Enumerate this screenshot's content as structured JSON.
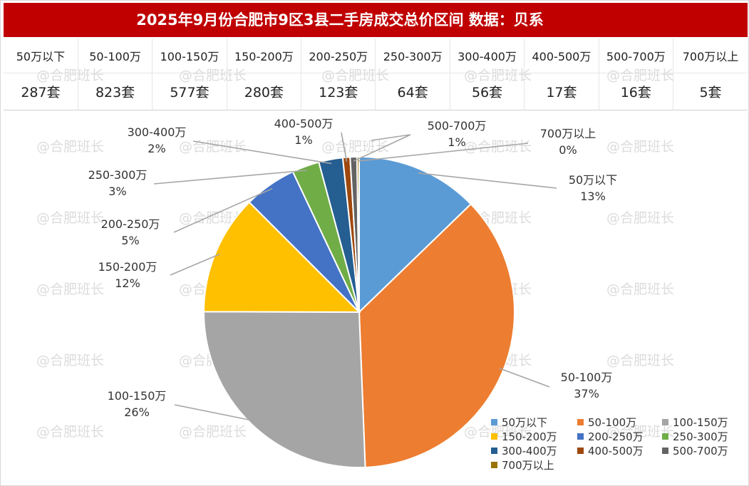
{
  "header": {
    "title": "2025年9月份合肥市9区3县二手房成交总价区间 数据：贝系"
  },
  "watermark": {
    "text": "@合肥班长"
  },
  "summary": {
    "categories": [
      "50万以下",
      "50-100万",
      "100-150万",
      "150-200万",
      "200-250万",
      "250-300万",
      "300-400万",
      "400-500万",
      "500-700万",
      "700万以上"
    ],
    "counts": [
      "287套",
      "823套",
      "577套",
      "280套",
      "123套",
      "64套",
      "56套",
      "17套",
      "16套",
      "5套"
    ]
  },
  "chart_data": {
    "type": "pie",
    "title": "",
    "categories": [
      "50万以下",
      "50-100万",
      "100-150万",
      "150-200万",
      "200-250万",
      "250-300万",
      "300-400万",
      "400-500万",
      "500-700万",
      "700万以上"
    ],
    "values": [
      287,
      823,
      577,
      280,
      123,
      64,
      56,
      17,
      16,
      5
    ],
    "percent_labels": [
      "13%",
      "37%",
      "26%",
      "12%",
      "5%",
      "3%",
      "2%",
      "1%",
      "1%",
      "0%"
    ],
    "colors": [
      "#5b9bd5",
      "#ed7d31",
      "#a5a5a5",
      "#ffc000",
      "#4472c4",
      "#70ad47",
      "#255e91",
      "#9e480e",
      "#636363",
      "#997300"
    ],
    "start_angle_deg": 0,
    "direction": "clockwise",
    "legend_position": "bottom-right"
  }
}
